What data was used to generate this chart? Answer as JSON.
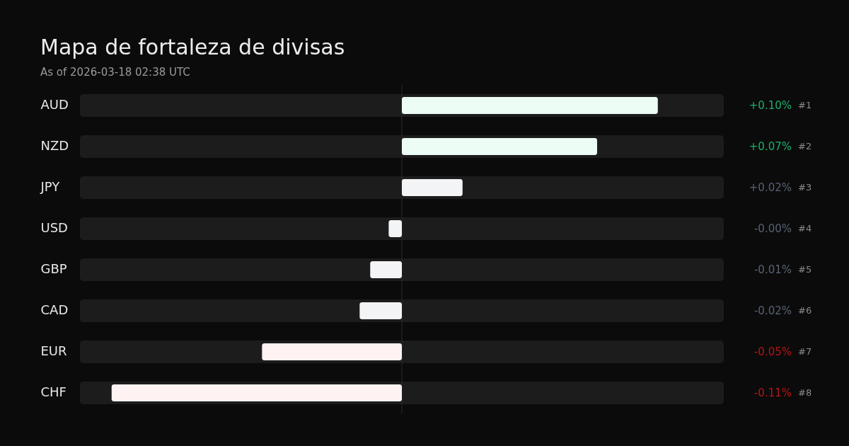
{
  "chart_data": {
    "type": "bar",
    "orientation": "horizontal",
    "title": "Mapa de fortaleza de divisas",
    "subtitle": "As of 2026-03-18 02:38 UTC",
    "categories": [
      "AUD",
      "NZD",
      "JPY",
      "USD",
      "GBP",
      "CAD",
      "EUR",
      "CHF"
    ],
    "values": [
      0.097,
      0.074,
      0.023,
      -0.005,
      -0.012,
      -0.016,
      -0.053,
      -0.11
    ],
    "value_labels": [
      "+0.10%",
      "+0.07%",
      "+0.02%",
      "-0.00%",
      "-0.01%",
      "-0.02%",
      "-0.05%",
      "-0.11%"
    ],
    "colors": [
      "#ecfdf5",
      "#ecfdf5",
      "#f3f4f6",
      "#f3f4f6",
      "#f3f4f6",
      "#f3f4f6",
      "#fef2f2",
      "#fef2f2"
    ],
    "xlim": [
      -0.122,
      0.122
    ],
    "ref_lines": [
      {
        "axis": "x",
        "value": 0,
        "color": "#2a2a2a"
      }
    ],
    "annotations": [
      "#1",
      "#2",
      "#3",
      "#4",
      "#5",
      "#6",
      "#7",
      "#8"
    ]
  }
}
